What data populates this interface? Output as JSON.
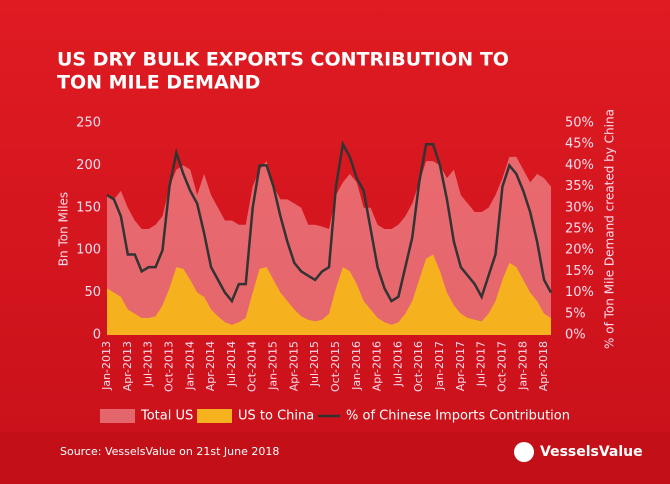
{
  "chart_data": {
    "type": "area_line",
    "title": "US DRY BULK EXPORTS CONTRIBUTION TO",
    "title_line2": "TON MILE DEMAND",
    "y_label": "Bn Ton Miles",
    "y2_label": "% of Ton Mile Demand created by China",
    "source": "Source: VesselsValue on 21st June 2018",
    "logo": "VesselsValue",
    "categories": [
      "Jan-2013",
      null,
      null,
      "Apr-2013",
      null,
      null,
      "Jul-2013",
      null,
      null,
      "Oct-2013",
      null,
      null,
      "Jan-2014",
      null,
      null,
      "Apr-2014",
      null,
      null,
      "Jul-2014",
      null,
      null,
      "Oct-2014",
      null,
      null,
      "Jan-2015",
      null,
      null,
      "Apr-2015",
      null,
      null,
      "Jul-2015",
      null,
      null,
      "Oct-2015",
      null,
      null,
      "Jan-2016",
      null,
      null,
      "Apr-2016",
      null,
      null,
      "Jul-2016",
      null,
      null,
      "Oct-2016",
      null,
      null,
      "Jan-2017",
      null,
      null,
      "Apr-2017",
      null,
      null,
      "Jul-2017",
      null,
      null,
      "Oct-2017",
      null,
      null,
      "Jan-2018",
      null,
      null,
      "Apr-2018",
      null
    ],
    "series": [
      {
        "name": "Total US",
        "color": "#f4a0a4",
        "values": [
          165,
          160,
          170,
          150,
          135,
          125,
          125,
          130,
          140,
          175,
          195,
          200,
          195,
          165,
          190,
          165,
          150,
          135,
          135,
          130,
          130,
          175,
          195,
          205,
          175,
          160,
          160,
          155,
          150,
          130,
          130,
          128,
          125,
          165,
          180,
          190,
          180,
          150,
          150,
          130,
          125,
          125,
          130,
          140,
          155,
          180,
          205,
          205,
          200,
          185,
          195,
          165,
          155,
          145,
          145,
          150,
          165,
          185,
          210,
          210,
          195,
          180,
          190,
          185,
          175
        ]
      },
      {
        "name": "US to China",
        "color": "#f6b21e",
        "values": [
          55,
          50,
          45,
          30,
          25,
          20,
          20,
          22,
          35,
          55,
          80,
          78,
          65,
          50,
          45,
          30,
          22,
          15,
          12,
          15,
          20,
          50,
          78,
          80,
          65,
          50,
          40,
          30,
          22,
          18,
          16,
          18,
          25,
          55,
          80,
          75,
          60,
          40,
          30,
          20,
          15,
          12,
          15,
          25,
          40,
          65,
          90,
          95,
          75,
          50,
          35,
          25,
          20,
          18,
          16,
          25,
          40,
          65,
          85,
          80,
          65,
          50,
          40,
          25,
          20
        ]
      },
      {
        "name": "% of Chinese Imports Contribution",
        "color": "#333333",
        "axis": "y2",
        "values": [
          33,
          32,
          28,
          19,
          19,
          15,
          16,
          16,
          20,
          35,
          43,
          38,
          34,
          31,
          24,
          16,
          13,
          10,
          8,
          12,
          12,
          30,
          40,
          40,
          35,
          28,
          22,
          17,
          15,
          14,
          13,
          15,
          16,
          35,
          45,
          42,
          37,
          34,
          25,
          16,
          11,
          8,
          9,
          16,
          23,
          36,
          45,
          45,
          40,
          32,
          22,
          16,
          14,
          12,
          9,
          14,
          19,
          35,
          40,
          38,
          34,
          29,
          22,
          13,
          10
        ]
      }
    ],
    "ylim": [
      0,
      250
    ],
    "yticks": [
      0,
      50,
      100,
      150,
      200,
      250
    ],
    "y2lim": [
      0,
      50
    ],
    "y2ticks": [
      {
        "value": 0,
        "label": "0%"
      },
      {
        "value": 5,
        "label": "5%"
      },
      {
        "value": 10,
        "label": "10%"
      },
      {
        "value": 15,
        "label": "15%"
      },
      {
        "value": 20,
        "label": "20%"
      },
      {
        "value": 25,
        "label": "25%"
      },
      {
        "value": 30,
        "label": "30%"
      },
      {
        "value": 35,
        "label": "35%"
      },
      {
        "value": 40,
        "label": "40%"
      },
      {
        "value": 45,
        "label": "45%"
      },
      {
        "value": 50,
        "label": "50%"
      }
    ]
  }
}
